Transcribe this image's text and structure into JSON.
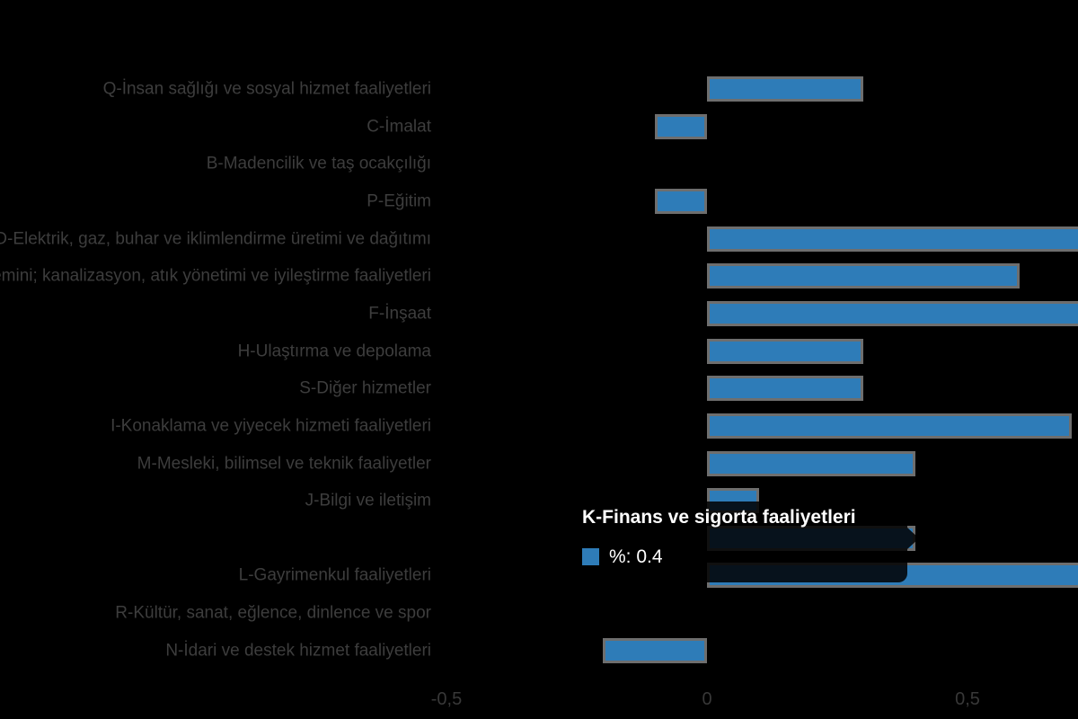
{
  "chart_data": {
    "type": "bar",
    "orientation": "horizontal",
    "title": "",
    "xlabel": "",
    "ylabel": "",
    "grid": false,
    "legend_position": "none",
    "categories": [
      "Q-İnsan sağlığı ve sosyal hizmet faaliyetleri",
      "C-İmalat",
      "B-Madencilik ve taş ocakçılığı",
      "P-Eğitim",
      "D-Elektrik, gaz, buhar ve iklimlendirme üretimi ve dağıtımı",
      "E-Su temini; kanalizasyon, atık yönetimi ve iyileştirme faaliyetleri",
      "F-İnşaat",
      "H-Ulaştırma ve depolama",
      "S-Diğer hizmetler",
      "I-Konaklama ve yiyecek hizmeti faaliyetleri",
      "M-Mesleki, bilimsel ve teknik faaliyetler",
      "J-Bilgi ve iletişim",
      "K-Finans ve sigorta faaliyetleri",
      "L-Gayrimenkul faaliyetleri",
      "R-Kültür, sanat, eğlence, dinlence ve spor",
      "N-İdari ve destek hizmet faaliyetleri"
    ],
    "values": [
      0.3,
      -0.1,
      0,
      -0.1,
      0.8,
      0.6,
      0.8,
      0.3,
      0.3,
      0.7,
      0.4,
      0.1,
      0.4,
      0.8,
      0,
      -0.2
    ],
    "series_name": "%",
    "x_tick_labels": [
      "-0,5",
      "0",
      "0,5"
    ],
    "x_tick_values": [
      -0.5,
      0,
      0.5
    ],
    "clipped_bar_indices": [
      4,
      6,
      13
    ],
    "zero_value_indices": [
      2,
      14
    ],
    "hovered_index": 12
  },
  "tooltip": {
    "title": "K-Finans ve sigorta faaliyetleri",
    "value_label": "%: 0.4",
    "marker_icon": "legend-square-icon"
  },
  "colors": {
    "background": "#000000",
    "bar_fill": "#2E7CB8",
    "bar_border": "#6E6E6E",
    "label_text": "#3D3D3D",
    "tick_text": "#383838",
    "tooltip_background": "rgba(0,0,0,0.85)",
    "tooltip_text": "#FFFFFF"
  }
}
